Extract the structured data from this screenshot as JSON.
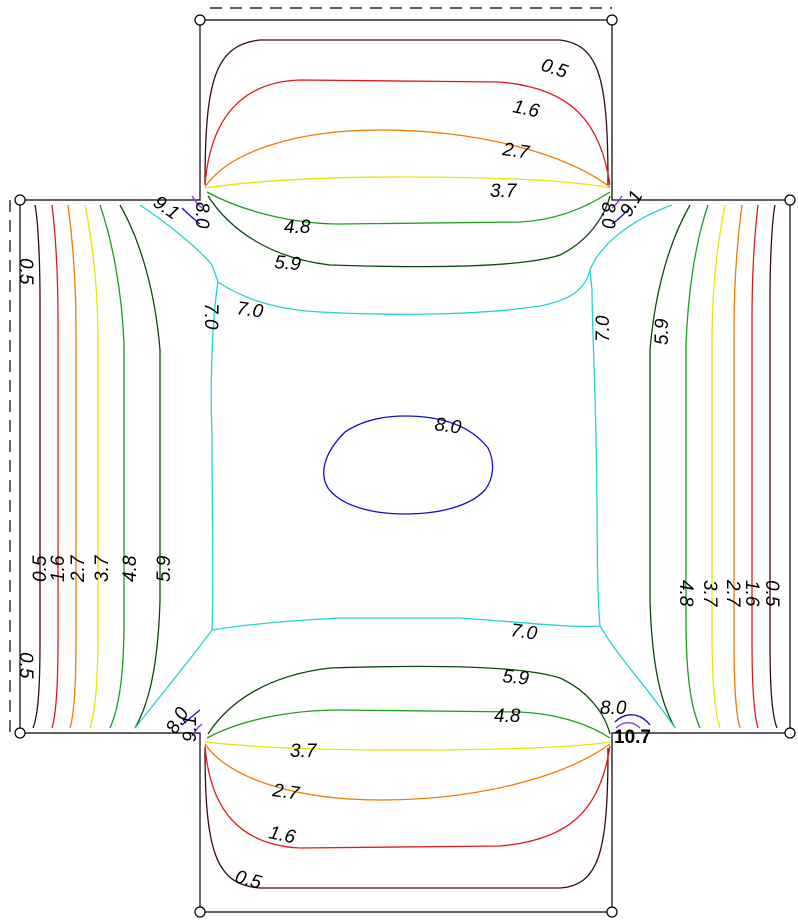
{
  "colors": {
    "c05": "#3b0b0b",
    "c16": "#e01b1b",
    "c27": "#f07a00",
    "c37": "#e6e600",
    "c48": "#1aa01a",
    "c59": "#0b4a0b",
    "c70": "#22d3d3",
    "c80": "#1010c8",
    "c91": "#8a2be2"
  },
  "labels": {
    "l05": "0.5",
    "l16": "1.6",
    "l27": "2.7",
    "l37": "3.7",
    "l48": "4.8",
    "l59": "5.9",
    "l70": "7.0",
    "l80": "8.0",
    "l91": "9.1",
    "l107": "10.7"
  }
}
